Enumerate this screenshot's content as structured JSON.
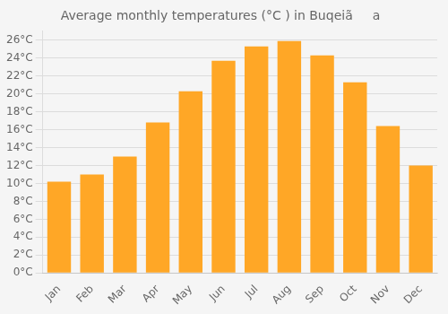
{
  "chart_data": {
    "type": "bar",
    "title": "Average monthly temperatures (°C ) in Buqeiãa",
    "categories": [
      "Jan",
      "Feb",
      "Mar",
      "Apr",
      "May",
      "Jun",
      "Jul",
      "Aug",
      "Sep",
      "Oct",
      "Nov",
      "Dec"
    ],
    "values": [
      10.2,
      11.0,
      13.0,
      16.8,
      20.3,
      23.7,
      25.3,
      25.9,
      24.3,
      21.3,
      16.4,
      12.0
    ],
    "color": "#FFA726",
    "ylim": [
      0,
      27
    ],
    "yticks": [
      {
        "value": 0,
        "label": "0°C"
      },
      {
        "value": 2,
        "label": "2°C"
      },
      {
        "value": 4,
        "label": "4°C"
      },
      {
        "value": 6,
        "label": "6°C"
      },
      {
        "value": 8,
        "label": "8°C"
      },
      {
        "value": 10,
        "label": "10°C"
      },
      {
        "value": 12,
        "label": "12°C"
      },
      {
        "value": 14,
        "label": "14°C"
      },
      {
        "value": 16,
        "label": "16°C"
      },
      {
        "value": 18,
        "label": "18°C"
      },
      {
        "value": 20,
        "label": "20°C"
      },
      {
        "value": 22,
        "label": "22°C"
      },
      {
        "value": 24,
        "label": "24°C"
      },
      {
        "value": 26,
        "label": "26°C"
      }
    ],
    "grid": true
  }
}
